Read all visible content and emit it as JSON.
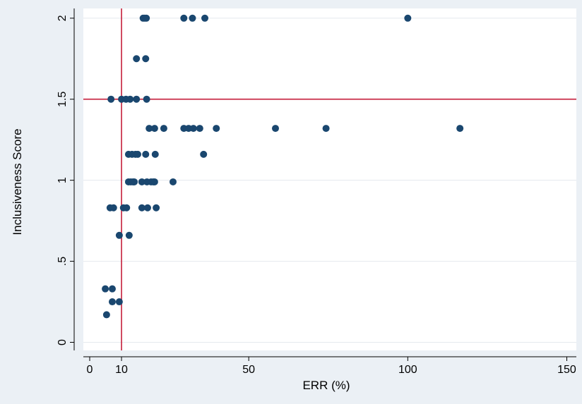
{
  "chart_data": {
    "type": "scatter",
    "xlabel": "ERR (%)",
    "ylabel": "Inclusiveness Score",
    "xlim": [
      -2,
      153
    ],
    "ylim": [
      -0.05,
      2.06
    ],
    "xticks": [
      {
        "value": 0,
        "label": "0"
      },
      {
        "value": 10,
        "label": "10"
      },
      {
        "value": 50,
        "label": "50"
      },
      {
        "value": 100,
        "label": "100"
      },
      {
        "value": 150,
        "label": "150"
      }
    ],
    "yticks": [
      {
        "value": 0,
        "label": "0"
      },
      {
        "value": 0.5,
        "label": ".5"
      },
      {
        "value": 1,
        "label": "1"
      },
      {
        "value": 1.5,
        "label": "1.5"
      },
      {
        "value": 2,
        "label": "2"
      }
    ],
    "reference_lines": {
      "x": 10,
      "y": 1.5,
      "color": "#c41e3a"
    },
    "marker_color": "#1a476f",
    "grid": "horizontal",
    "points": [
      {
        "x": 16.8,
        "y": 2.0
      },
      {
        "x": 17.3,
        "y": 2.0
      },
      {
        "x": 17.8,
        "y": 2.0
      },
      {
        "x": 29.6,
        "y": 2.0
      },
      {
        "x": 32.3,
        "y": 2.0
      },
      {
        "x": 36.2,
        "y": 2.0
      },
      {
        "x": 100.0,
        "y": 2.0
      },
      {
        "x": 14.7,
        "y": 1.75
      },
      {
        "x": 17.6,
        "y": 1.75
      },
      {
        "x": 6.7,
        "y": 1.5
      },
      {
        "x": 10.0,
        "y": 1.5
      },
      {
        "x": 11.4,
        "y": 1.5
      },
      {
        "x": 12.7,
        "y": 1.5
      },
      {
        "x": 14.7,
        "y": 1.5
      },
      {
        "x": 17.9,
        "y": 1.5
      },
      {
        "x": 18.7,
        "y": 1.32
      },
      {
        "x": 20.4,
        "y": 1.32
      },
      {
        "x": 23.3,
        "y": 1.32
      },
      {
        "x": 29.6,
        "y": 1.32
      },
      {
        "x": 31.1,
        "y": 1.32
      },
      {
        "x": 32.6,
        "y": 1.32
      },
      {
        "x": 34.6,
        "y": 1.32
      },
      {
        "x": 39.8,
        "y": 1.32
      },
      {
        "x": 58.4,
        "y": 1.32
      },
      {
        "x": 74.3,
        "y": 1.32
      },
      {
        "x": 116.4,
        "y": 1.32
      },
      {
        "x": 12.2,
        "y": 1.16
      },
      {
        "x": 13.3,
        "y": 1.16
      },
      {
        "x": 14.4,
        "y": 1.16
      },
      {
        "x": 15.1,
        "y": 1.16
      },
      {
        "x": 17.6,
        "y": 1.16
      },
      {
        "x": 20.6,
        "y": 1.16
      },
      {
        "x": 35.8,
        "y": 1.16
      },
      {
        "x": 12.2,
        "y": 0.99
      },
      {
        "x": 12.9,
        "y": 0.99
      },
      {
        "x": 13.6,
        "y": 0.99
      },
      {
        "x": 14.0,
        "y": 0.99
      },
      {
        "x": 16.4,
        "y": 0.99
      },
      {
        "x": 18.0,
        "y": 0.99
      },
      {
        "x": 19.3,
        "y": 0.99
      },
      {
        "x": 20.0,
        "y": 0.99
      },
      {
        "x": 20.4,
        "y": 0.99
      },
      {
        "x": 26.2,
        "y": 0.99
      },
      {
        "x": 6.4,
        "y": 0.83
      },
      {
        "x": 7.5,
        "y": 0.83
      },
      {
        "x": 10.6,
        "y": 0.83
      },
      {
        "x": 11.6,
        "y": 0.83
      },
      {
        "x": 16.4,
        "y": 0.83
      },
      {
        "x": 18.2,
        "y": 0.83
      },
      {
        "x": 20.9,
        "y": 0.83
      },
      {
        "x": 9.3,
        "y": 0.66
      },
      {
        "x": 12.4,
        "y": 0.66
      },
      {
        "x": 4.9,
        "y": 0.33
      },
      {
        "x": 7.1,
        "y": 0.33
      },
      {
        "x": 7.1,
        "y": 0.25
      },
      {
        "x": 9.3,
        "y": 0.25
      },
      {
        "x": 5.3,
        "y": 0.17
      }
    ]
  }
}
